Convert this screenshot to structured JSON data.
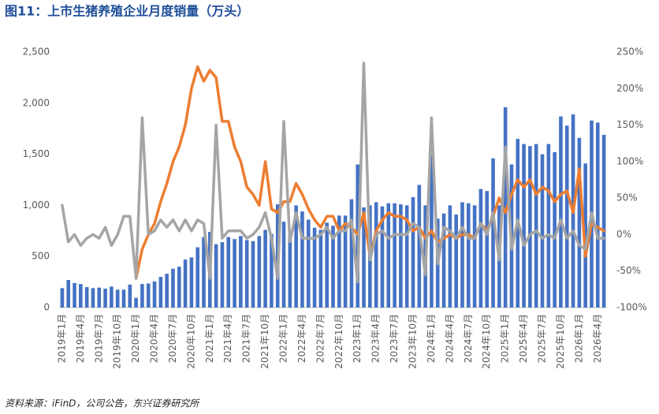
{
  "chart_data": {
    "type": "bar-line",
    "title": "图11：上市生猪养殖企业月度销量（万头）",
    "source": "资料来源：iFinD，公司公告，东兴证券研究所",
    "categories": [
      "2019年1月",
      null,
      null,
      "2019年4月",
      null,
      null,
      "2019年7月",
      null,
      null,
      "2019年10月",
      null,
      null,
      "2020年1月",
      null,
      null,
      "2020年4月",
      null,
      null,
      "2020年7月",
      null,
      null,
      "2020年10月",
      null,
      null,
      "2021年1月",
      null,
      null,
      "2021年4月",
      null,
      null,
      "2021年7月",
      null,
      null,
      "2021年10月",
      null,
      null,
      "2022年1月",
      null,
      null,
      "2022年4月",
      null,
      null,
      "2022年7月",
      null,
      null,
      "2022年10月",
      null,
      null,
      "2023年1月",
      null,
      null,
      "2023年4月",
      null,
      null,
      "2023年7月",
      null,
      null,
      "2023年10月",
      null,
      null,
      "2024年1月",
      null,
      null,
      "2024年4月",
      null,
      null,
      "2024年7月",
      null,
      null,
      "2024年10月",
      null,
      null,
      "2025年1月",
      null,
      null,
      "2025年4月",
      null,
      null,
      "2025年7月",
      null,
      null,
      "2025年10月",
      null,
      null,
      "2026年1月",
      null,
      null,
      "2026年4月",
      null
    ],
    "ylim": [
      0,
      2500
    ],
    "yticks": [
      0,
      {
        "value": 500,
        "label": "500"
      },
      {
        "value": 1000,
        "label": "1,000"
      },
      {
        "value": 1500,
        "label": "1,500"
      },
      {
        "value": 2000,
        "label": "2,000"
      },
      {
        "value": 2500,
        "label": "2,500"
      }
    ],
    "y2lim": [
      -100,
      250
    ],
    "y2ticks": [
      {
        "value": -100,
        "label": "-100%"
      },
      {
        "value": -50,
        "label": "-50%"
      },
      {
        "value": 0,
        "label": "0%"
      },
      {
        "value": 50,
        "label": "50%"
      },
      {
        "value": 100,
        "label": "100%"
      },
      {
        "value": 150,
        "label": "150%"
      },
      {
        "value": 200,
        "label": "200%"
      },
      {
        "value": 250,
        "label": "250%"
      }
    ],
    "series": [
      {
        "kind": "bar",
        "color": "#4472c4",
        "values": [
          190,
          270,
          240,
          230,
          200,
          190,
          195,
          185,
          205,
          175,
          175,
          225,
          95,
          230,
          235,
          255,
          300,
          330,
          380,
          400,
          470,
          490,
          590,
          690,
          740,
          620,
          640,
          690,
          670,
          700,
          660,
          650,
          700,
          760,
          720,
          1010,
          840,
          750,
          1000,
          940,
          860,
          780,
          760,
          830,
          800,
          900,
          900,
          1060,
          1400,
          980,
          1000,
          1030,
          990,
          1020,
          1020,
          1010,
          1000,
          1080,
          1200,
          1000,
          1500,
          870,
          920,
          1000,
          910,
          1030,
          1020,
          1000,
          1160,
          1140,
          1460,
          1000,
          1960,
          1400,
          1650,
          1600,
          1580,
          1600,
          1500,
          1600,
          1520,
          1870,
          1780,
          1890,
          1660,
          1410,
          1830,
          1810,
          1690
        ]
      },
      {
        "kind": "line",
        "axis": "y2",
        "color": "#ed7d31",
        "values": [
          null,
          null,
          null,
          null,
          null,
          null,
          null,
          null,
          null,
          null,
          null,
          null,
          -60,
          -20,
          0,
          15,
          45,
          70,
          100,
          120,
          150,
          200,
          230,
          210,
          225,
          215,
          155,
          155,
          120,
          100,
          65,
          55,
          40,
          100,
          35,
          30,
          45,
          45,
          70,
          55,
          35,
          20,
          10,
          25,
          25,
          5,
          15,
          10,
          0,
          30,
          -30,
          5,
          20,
          30,
          25,
          25,
          20,
          5,
          10,
          -5,
          5,
          -10,
          -5,
          0,
          -5,
          0,
          0,
          -5,
          15,
          5,
          25,
          50,
          30,
          55,
          75,
          65,
          75,
          55,
          65,
          60,
          45,
          55,
          60,
          30,
          90,
          -30,
          15,
          10,
          5
        ]
      },
      {
        "kind": "line",
        "axis": "y2",
        "color": "#a5a5a5",
        "values": [
          40,
          -10,
          0,
          -15,
          -5,
          0,
          -5,
          10,
          -15,
          0,
          25,
          25,
          -60,
          160,
          0,
          5,
          20,
          10,
          20,
          5,
          20,
          5,
          20,
          15,
          -60,
          150,
          -5,
          5,
          5,
          5,
          -5,
          0,
          10,
          30,
          -5,
          -60,
          155,
          -10,
          30,
          -5,
          -5,
          -5,
          0,
          10,
          -5,
          5,
          5,
          20,
          -65,
          235,
          -35,
          0,
          5,
          -5,
          0,
          0,
          0,
          15,
          10,
          -55,
          160,
          -40,
          10,
          5,
          -5,
          10,
          -5,
          -5,
          15,
          0,
          30,
          -35,
          120,
          -20,
          20,
          -15,
          0,
          5,
          -5,
          0,
          -5,
          20,
          -5,
          5,
          -15,
          -20,
          30,
          -5,
          -5
        ]
      }
    ]
  }
}
